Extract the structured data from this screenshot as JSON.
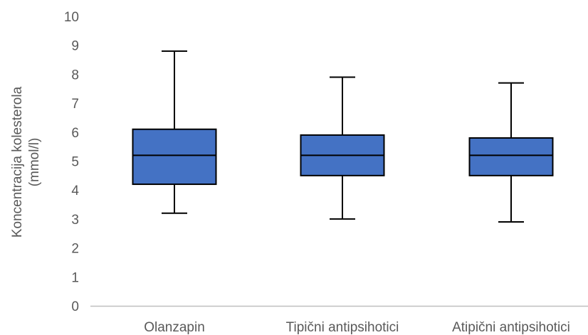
{
  "chart_data": {
    "type": "box",
    "ylabel_line1": "Koncentracija kolesterola",
    "ylabel_line2": "(mmol/l)",
    "ylim": [
      0,
      10
    ],
    "yticks": [
      0,
      1,
      2,
      3,
      4,
      5,
      6,
      7,
      8,
      9,
      10
    ],
    "ytick_labels": [
      "0",
      "1",
      "2",
      "3",
      "4",
      "5",
      "6",
      "7",
      "8",
      "9",
      "10"
    ],
    "grid": false,
    "categories": [
      "Olanzapin",
      "Tipični antipsihotici",
      "Atipični antipsihotici"
    ],
    "boxes": [
      {
        "min": 3.2,
        "q1": 4.2,
        "median": 5.2,
        "q3": 6.1,
        "max": 8.8
      },
      {
        "min": 3.0,
        "q1": 4.5,
        "median": 5.2,
        "q3": 5.9,
        "max": 7.9
      },
      {
        "min": 2.9,
        "q1": 4.5,
        "median": 5.2,
        "q3": 5.8,
        "max": 7.7
      }
    ],
    "box_color": "#4472C4",
    "line_color": "#000000",
    "axis_color": "#BFBFBF"
  }
}
